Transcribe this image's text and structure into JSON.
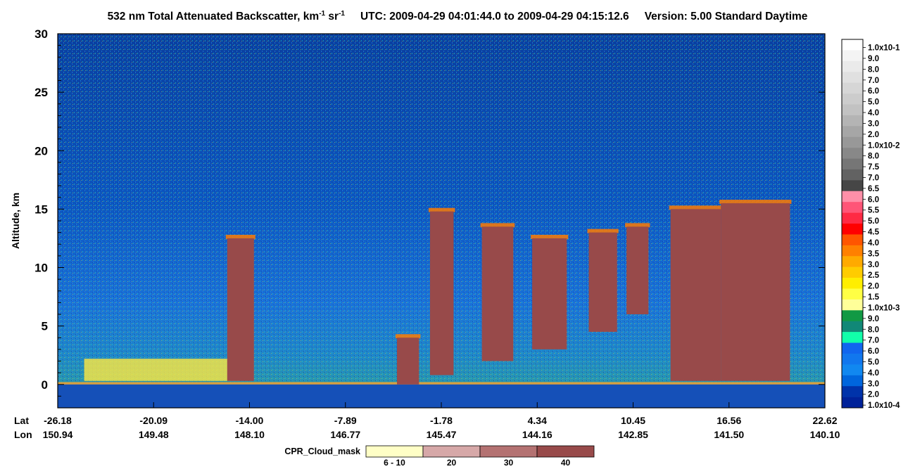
{
  "title": {
    "product_main": "532 nm Total Attenuated Backscatter, km",
    "product_exp1": "-1",
    "product_mid": " sr",
    "product_exp2": "-1",
    "utc_text": "UTC:  2009-04-29 04:01:44.0  to  2009-04-29 04:15:12.6",
    "version_text": "Version: 5.00  Standard  Daytime"
  },
  "chart_data": {
    "type": "heatmap",
    "ylabel": "Altitude, km",
    "ylim": [
      -2,
      30
    ],
    "yticks": [
      "30",
      "25",
      "20",
      "15",
      "10",
      "5",
      "0"
    ],
    "x_row_labels": {
      "lat": "Lat",
      "lon": "Lon"
    },
    "x_ticks": [
      {
        "lat": "-26.18",
        "lon": "150.94"
      },
      {
        "lat": "-20.09",
        "lon": "149.48"
      },
      {
        "lat": "-14.00",
        "lon": "148.10"
      },
      {
        "lat": "-7.89",
        "lon": "146.77"
      },
      {
        "lat": "-1.78",
        "lon": "145.47"
      },
      {
        "lat": "4.34",
        "lon": "144.16"
      },
      {
        "lat": "10.45",
        "lon": "142.85"
      },
      {
        "lat": "16.56",
        "lon": "141.50"
      },
      {
        "lat": "22.62",
        "lon": "140.10"
      }
    ],
    "colorbar": {
      "labels": [
        "1.0x10-1",
        "9.0",
        "8.0",
        "7.0",
        "6.0",
        "5.0",
        "4.0",
        "3.0",
        "2.0",
        "1.0x10-2",
        "8.0",
        "7.5",
        "7.0",
        "6.5",
        "6.0",
        "5.5",
        "5.0",
        "4.5",
        "4.0",
        "3.5",
        "3.0",
        "2.5",
        "2.0",
        "1.5",
        "1.0x10-3",
        "9.0",
        "8.0",
        "7.0",
        "6.0",
        "5.0",
        "4.0",
        "3.0",
        "2.0",
        "1.0x10-4"
      ],
      "colors": [
        "#ffffff",
        "#f4f4f4",
        "#eaeaea",
        "#e0e0e0",
        "#d6d6d6",
        "#cccccc",
        "#c2c2c2",
        "#b4b4b4",
        "#a6a6a6",
        "#989898",
        "#888888",
        "#767676",
        "#626262",
        "#464646",
        "#ff8fa8",
        "#ff5577",
        "#ff2a44",
        "#ff0000",
        "#ff5500",
        "#ff8000",
        "#ffaa00",
        "#ffcc00",
        "#ffee00",
        "#ffff44",
        "#ffff99",
        "#119944",
        "#118877",
        "#11ffaa",
        "#1166ee",
        "#1177ee",
        "#1188f0",
        "#0066dd",
        "#0033aa",
        "#002299"
      ]
    },
    "cloud_mask": {
      "label": "CPR_Cloud_mask",
      "bins": [
        {
          "label": "6 - 10",
          "color": "#ffffc6"
        },
        {
          "label": "20",
          "color": "#d6a8a8"
        },
        {
          "label": "30",
          "color": "#b47272"
        },
        {
          "label": "40",
          "color": "#984a4a"
        }
      ]
    },
    "cloud_features": [
      {
        "lat_start": -15.4,
        "lat_end": -13.7,
        "alt_bottom": 0.3,
        "alt_top": 12.5,
        "mask": "40"
      },
      {
        "lat_start": -4.6,
        "lat_end": -3.2,
        "alt_bottom": 0.0,
        "alt_top": 4.0,
        "mask": "40"
      },
      {
        "lat_start": -2.5,
        "lat_end": -1.0,
        "alt_bottom": 0.8,
        "alt_top": 14.8,
        "mask": "40"
      },
      {
        "lat_start": 0.8,
        "lat_end": 2.8,
        "alt_bottom": 2.0,
        "alt_top": 13.5,
        "mask": "40"
      },
      {
        "lat_start": 4.0,
        "lat_end": 6.2,
        "alt_bottom": 3.0,
        "alt_top": 12.5,
        "mask": "40"
      },
      {
        "lat_start": 7.6,
        "lat_end": 9.4,
        "alt_bottom": 4.5,
        "alt_top": 13.0,
        "mask": "40"
      },
      {
        "lat_start": 10.0,
        "lat_end": 11.4,
        "alt_bottom": 6.0,
        "alt_top": 13.5,
        "mask": "40"
      },
      {
        "lat_start": 12.8,
        "lat_end": 16.0,
        "alt_bottom": 0.3,
        "alt_top": 15.0,
        "mask": "40"
      },
      {
        "lat_start": 16.0,
        "lat_end": 20.4,
        "alt_bottom": 0.3,
        "alt_top": 15.5,
        "mask": "40"
      }
    ]
  }
}
